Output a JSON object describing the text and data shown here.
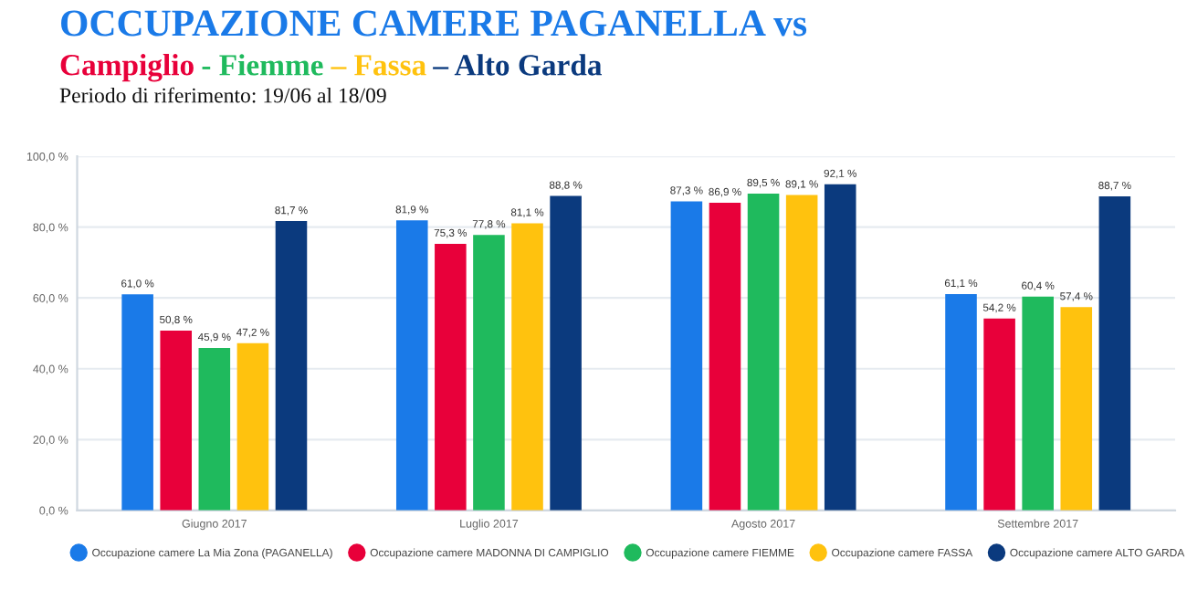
{
  "chart_data": {
    "type": "bar",
    "title": "OCCUPAZIONE CAMERE PAGANELLA vs",
    "subtitle": "Periodo di riferimento: 19/06 al 18/09",
    "annotations": [
      "Campiglio",
      " - Fiemme",
      " – Fassa",
      " – Alto Garda"
    ],
    "categories": [
      "Giugno 2017",
      "Luglio 2017",
      "Agosto 2017",
      "Settembre 2017"
    ],
    "series": [
      {
        "name": "Occupazione camere La Mia Zona (PAGANELLA)",
        "color": "#1a7ae8",
        "values": [
          61.0,
          81.9,
          87.3,
          61.1
        ],
        "value_labels": [
          "61,0 %",
          "81,9 %",
          "87,3 %",
          "61,1 %"
        ]
      },
      {
        "name": "Occupazione camere MADONNA DI CAMPIGLIO",
        "color": "#e8003a",
        "values": [
          50.8,
          75.3,
          86.9,
          54.2
        ],
        "value_labels": [
          "50,8 %",
          "75,3 %",
          "86,9 %",
          "54,2 %"
        ]
      },
      {
        "name": "Occupazione camere FIEMME",
        "color": "#1fba5d",
        "values": [
          45.9,
          77.8,
          89.5,
          60.4
        ],
        "value_labels": [
          "45,9 %",
          "77,8 %",
          "89,5 %",
          "60,4 %"
        ]
      },
      {
        "name": "Occupazione camere FASSA",
        "color": "#ffc20e",
        "values": [
          47.2,
          81.1,
          89.1,
          57.4
        ],
        "value_labels": [
          "47,2 %",
          "81,1 %",
          "89,1 %",
          "57,4 %"
        ]
      },
      {
        "name": "Occupazione camere ALTO GARDA",
        "color": "#0b3a7e",
        "values": [
          81.7,
          88.8,
          92.1,
          88.7
        ],
        "value_labels": [
          "81,7 %",
          "88,8 %",
          "92,1 %",
          "88,7 %"
        ]
      }
    ],
    "ylim": [
      0,
      100
    ],
    "yticks": [
      {
        "value": 0,
        "label": "0,0 %"
      },
      {
        "value": 20,
        "label": "20,0 %"
      },
      {
        "value": 40,
        "label": "40,0 %"
      },
      {
        "value": 60,
        "label": "60,0 %"
      },
      {
        "value": 80,
        "label": "80,0 %"
      },
      {
        "value": 100,
        "label": "100,0 %"
      }
    ],
    "grid": "y",
    "legend": "bottom"
  }
}
